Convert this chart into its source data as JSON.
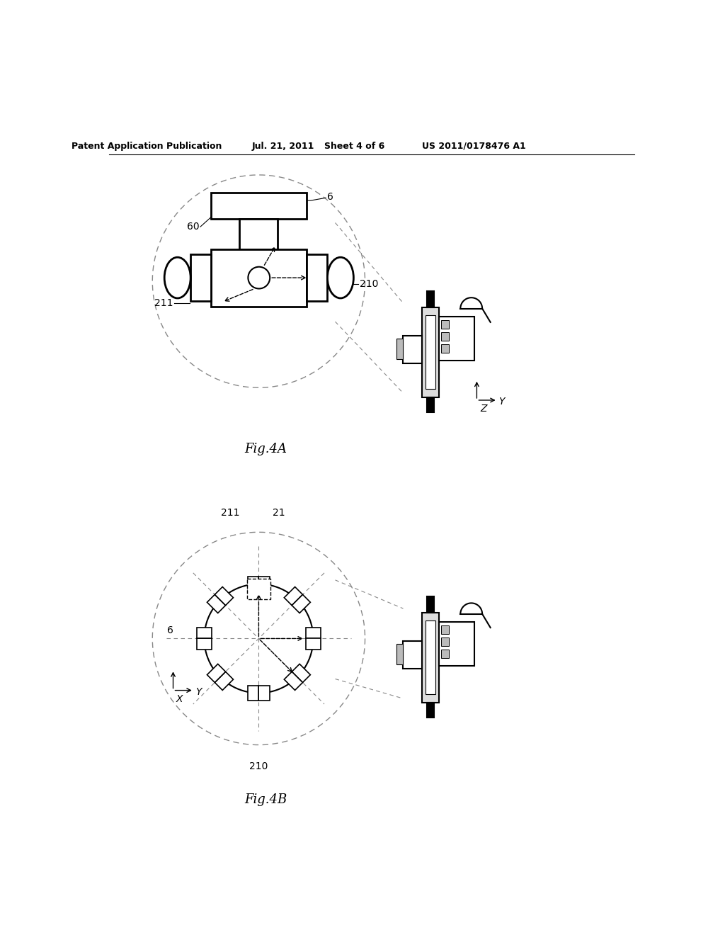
{
  "background_color": "#ffffff",
  "header_text": "Patent Application Publication",
  "header_date": "Jul. 21, 2011",
  "header_sheet": "Sheet 4 of 6",
  "header_patent": "US 2011/0178476 A1",
  "fig4a_label": "Fig.4A",
  "fig4b_label": "Fig.4B",
  "label_60": "60",
  "label_6_a": "6",
  "label_210_a": "210",
  "label_211_a": "211",
  "label_211_b": "211",
  "label_21_b": "21",
  "label_6_b": "6",
  "label_210_b": "210"
}
